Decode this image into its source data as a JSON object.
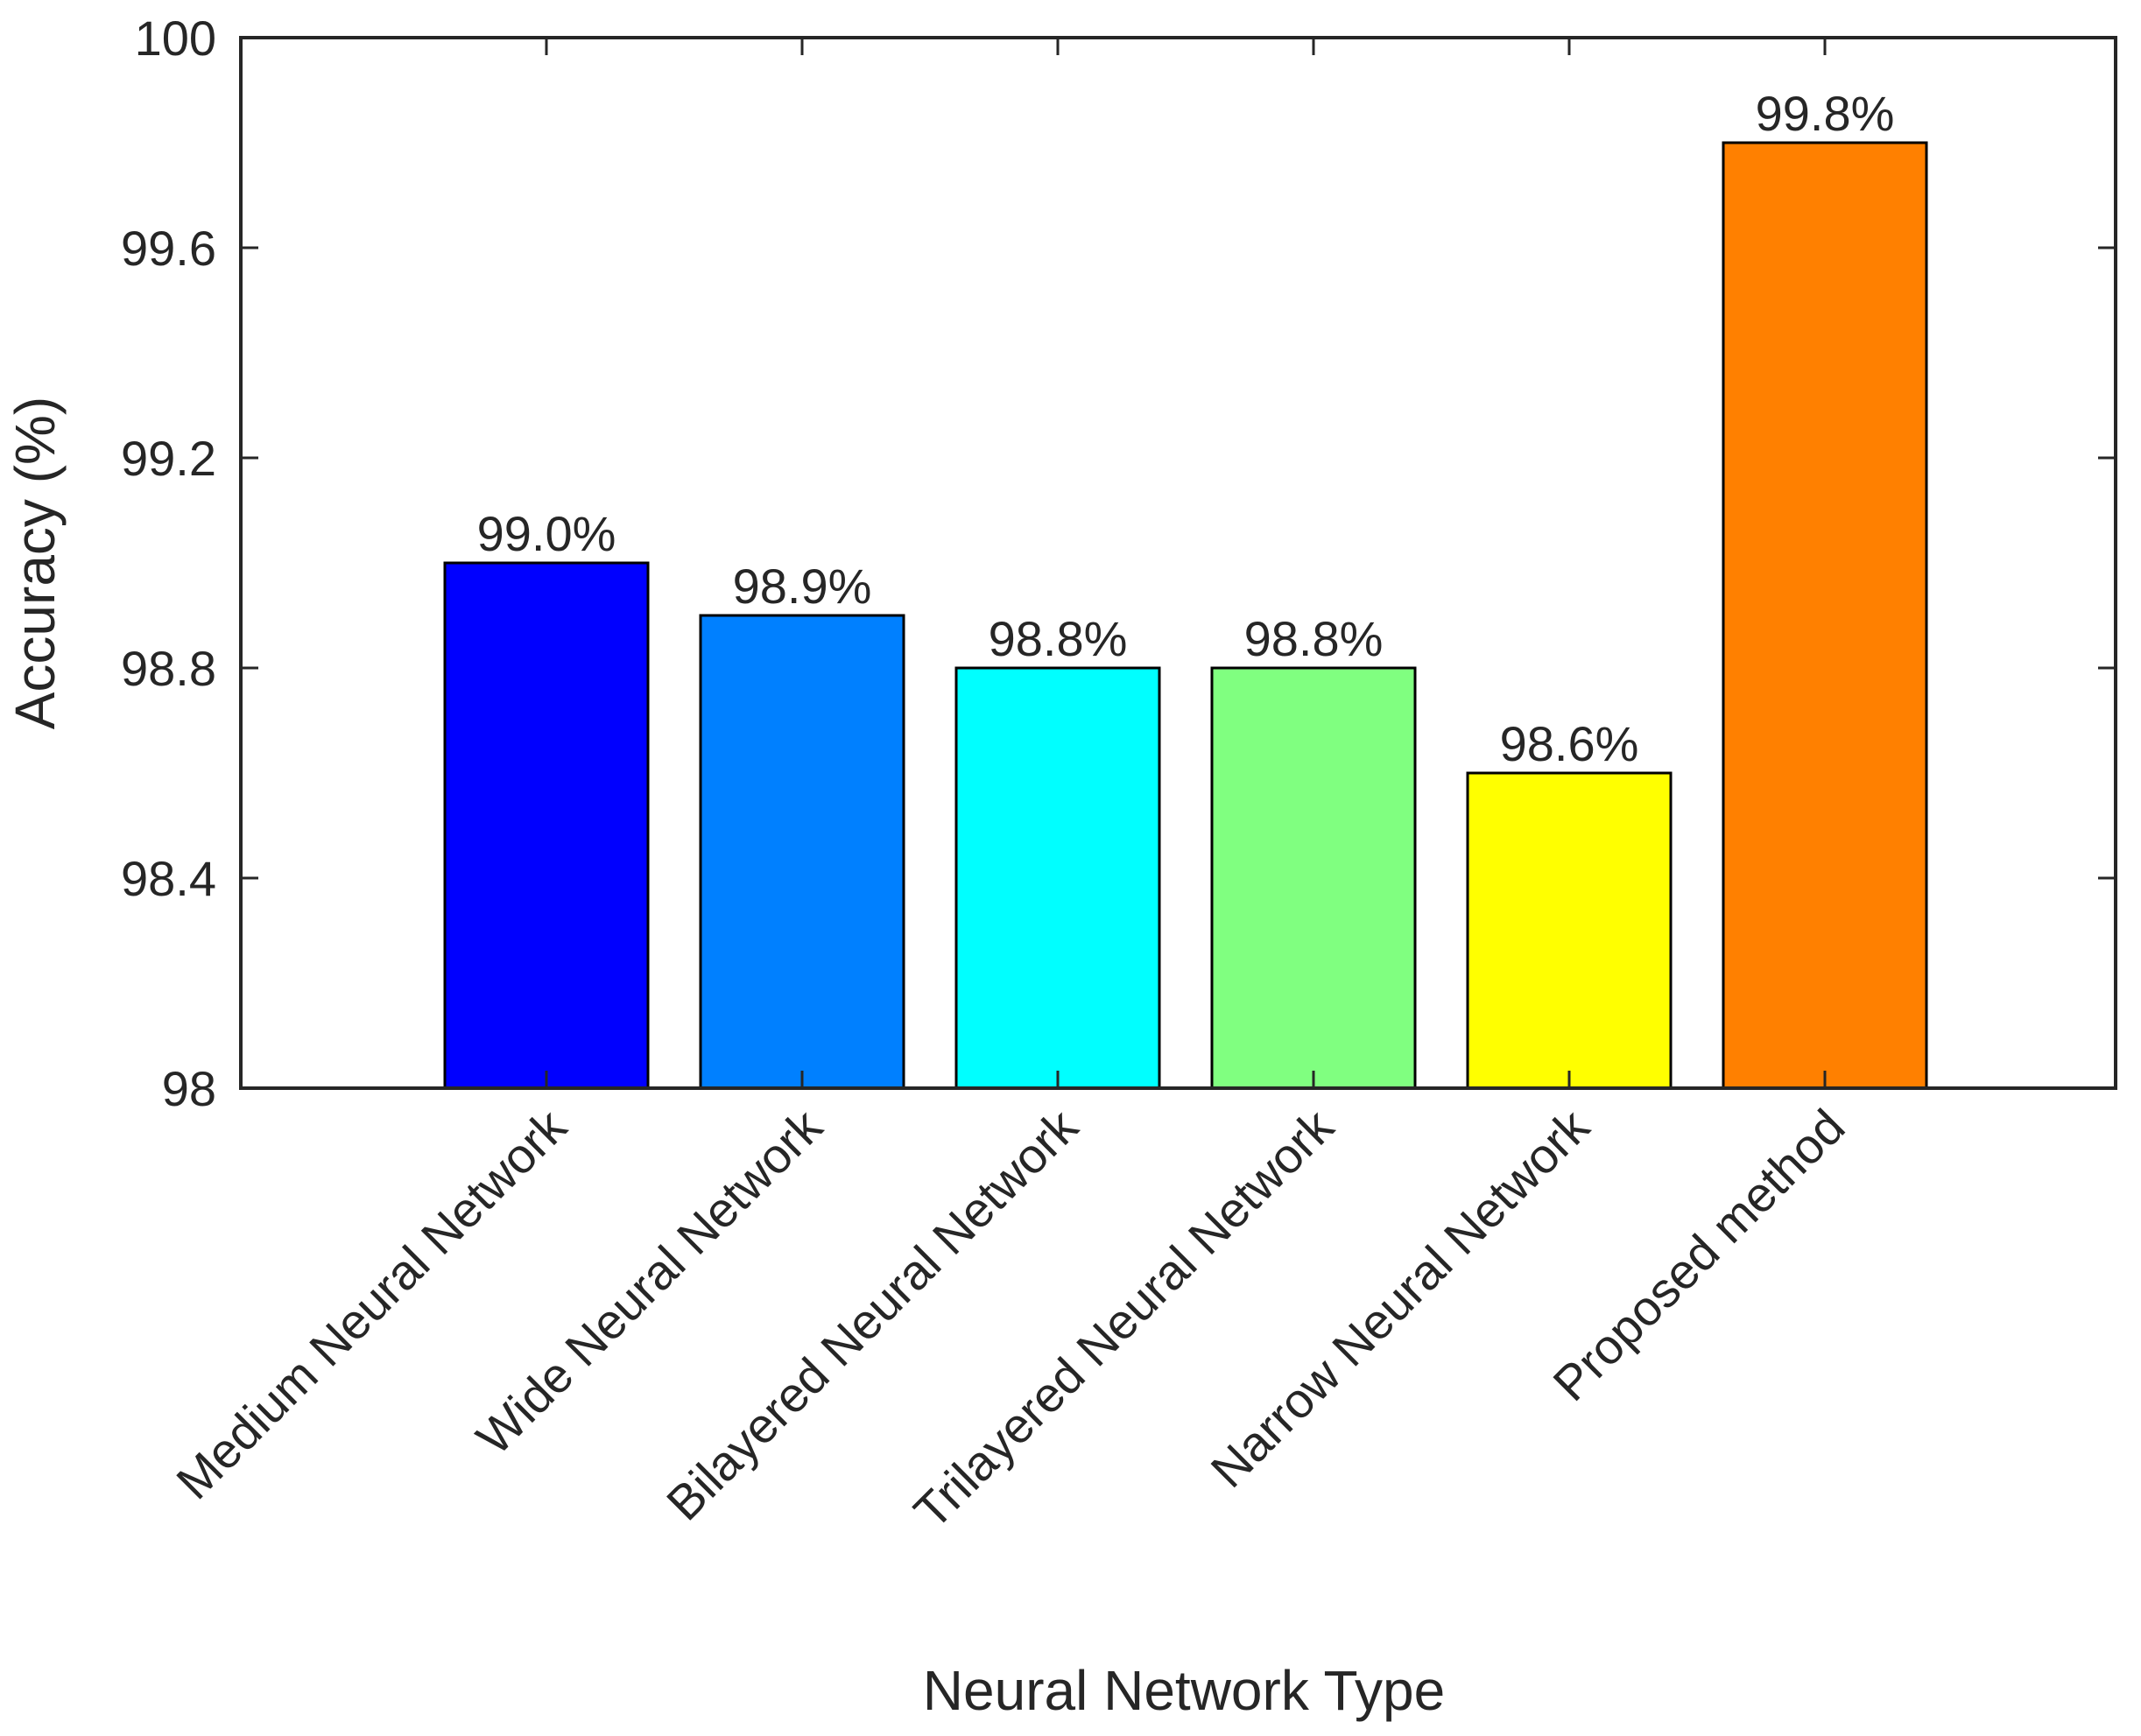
{
  "chart_data": {
    "type": "bar",
    "categories": [
      "Medium Neural Network",
      "Wide Neural Network",
      "Bilayered Neural Network",
      "Trilayered Neural Network",
      "Narrow Neural Network",
      "Proposed method"
    ],
    "values": [
      99.0,
      98.9,
      98.8,
      98.8,
      98.6,
      99.8
    ],
    "data_labels": [
      "99.0%",
      "98.9%",
      "98.8%",
      "98.8%",
      "98.6%",
      "99.8%"
    ],
    "colors": [
      "#0000ff",
      "#0080ff",
      "#00ffff",
      "#80ff80",
      "#ffff00",
      "#ff8000"
    ],
    "title": "",
    "xlabel": "Neural Network Type",
    "ylabel": "Accuracy (%)",
    "ylim": [
      98,
      100
    ],
    "yticks": [
      98,
      98.4,
      98.8,
      99.2,
      99.6,
      100
    ],
    "ytick_labels": [
      "98",
      "98.4",
      "98.8",
      "99.2",
      "99.6",
      "100"
    ],
    "grid": false,
    "legend": "none"
  }
}
